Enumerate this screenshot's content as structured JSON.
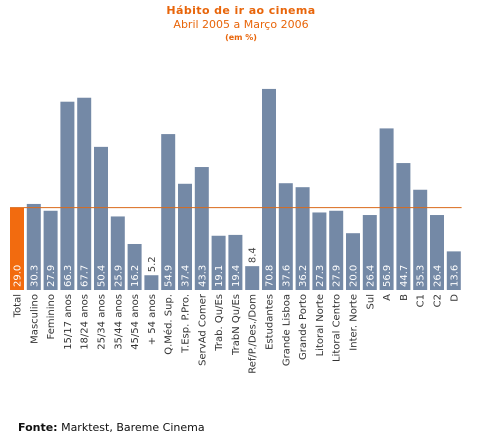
{
  "title": "Hábito de ir ao cinema",
  "subtitle": "Abril 2005 a Março 2006",
  "unit_note": "(em %)",
  "source": {
    "label": "Fonte:",
    "text": "Marktest, Bareme Cinema"
  },
  "colors": {
    "bar": "#7489a6",
    "highlight": "#f26b0f",
    "reference_line": "#d96a1a",
    "title": "#e8650a"
  },
  "chart_data": {
    "type": "bar",
    "categories": [
      "Total",
      "Masculino",
      "Feminino",
      "15/17 anos",
      "18/24 anos",
      "25/34 anos",
      "35/44 anos",
      "45/54 anos",
      "+ 54  anos",
      "Q.Méd. Sup.",
      "T.Esp. P.Pro.",
      "ServAd Comer",
      "Trab. Qu/Es",
      "TrabN Qu/Es",
      "Ref/P./Des./Dom",
      "Estudantes",
      "Grande Lisboa",
      "Grande Porto",
      "Litoral Norte",
      "Litoral Centro",
      "Inter. Norte",
      "Sul",
      "A",
      "B",
      "C1",
      "C2",
      "D"
    ],
    "values": [
      29.0,
      30.3,
      27.9,
      66.3,
      67.7,
      50.4,
      25.9,
      16.2,
      5.2,
      54.9,
      37.4,
      43.3,
      19.1,
      19.4,
      8.4,
      70.8,
      37.6,
      36.2,
      27.3,
      27.9,
      20.0,
      26.4,
      56.9,
      44.7,
      35.3,
      26.4,
      13.6
    ],
    "value_labels": [
      "29.0",
      "30.3",
      "27.9",
      "66.3",
      "67.7",
      "50.4",
      "25.9",
      "16.2",
      "5.2",
      "54.9",
      "37.4",
      "43.3",
      "19.1",
      "19.4",
      "8.4",
      "70.8",
      "37.6",
      "36.2",
      "27.3",
      "27.9",
      "20.0",
      "26.4",
      "56.9",
      "44.7",
      "35.3",
      "26.4",
      "13.6"
    ],
    "highlight_category": "Total",
    "reference_line": 29.0,
    "ylim": [
      0,
      75
    ],
    "grid": false,
    "legend": false
  }
}
